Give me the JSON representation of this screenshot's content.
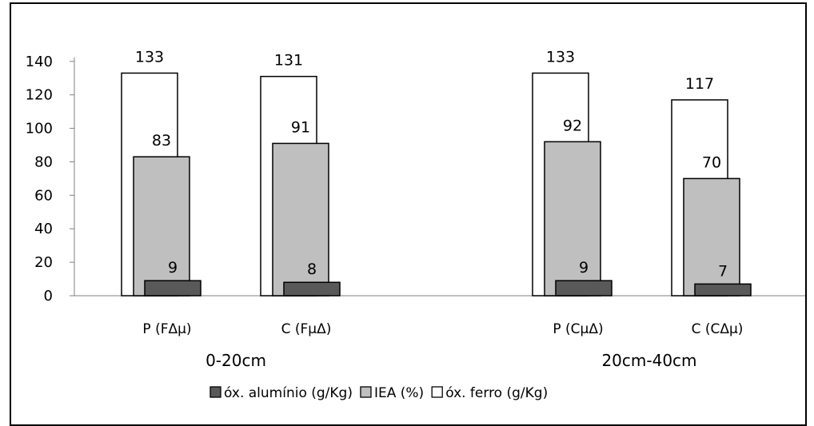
{
  "chart_data": {
    "type": "bar",
    "title": "",
    "xlabel": "",
    "ylabel": "",
    "ylim": [
      0,
      140
    ],
    "yticks": [
      0,
      20,
      40,
      60,
      80,
      100,
      120,
      140
    ],
    "grid": false,
    "legend_position": "bottom",
    "layout": "overlapping",
    "categories": [
      "P (FΔμ)",
      "C (FμΔ)",
      "P (CμΔ)",
      "C (CΔμ)"
    ],
    "groups": [
      {
        "label": "0-20cm",
        "categories": [
          "P (FΔμ)",
          "C (FμΔ)"
        ]
      },
      {
        "label": "20cm-40cm",
        "categories": [
          "P (CμΔ)",
          "C (CΔμ)"
        ]
      }
    ],
    "series": [
      {
        "name": "óx. ferro (g/Kg)",
        "color": "#ffffff",
        "values": [
          133,
          131,
          133,
          117
        ]
      },
      {
        "name": "IEA (%)",
        "color": "#bfbfbf",
        "values": [
          83,
          91,
          92,
          70
        ]
      },
      {
        "name": "óx. alumínio (g/Kg)",
        "color": "#595959",
        "values": [
          9,
          8,
          9,
          7
        ]
      }
    ],
    "legend_order": [
      "óx. alumínio (g/Kg)",
      "IEA (%)",
      "óx. ferro (g/Kg)"
    ]
  }
}
